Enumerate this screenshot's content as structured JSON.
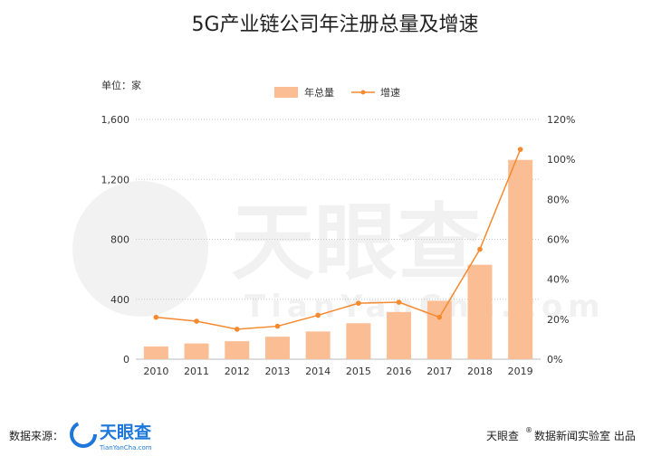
{
  "chart_data": {
    "type": "bar",
    "title": "5G产业链公司年注册总量及增速",
    "unit_label": "单位：家",
    "categories": [
      "2010",
      "2011",
      "2012",
      "2013",
      "2014",
      "2015",
      "2016",
      "2017",
      "2018",
      "2019"
    ],
    "series": [
      {
        "name": "年总量",
        "type": "bar",
        "axis": "left",
        "color": "#FBBE94",
        "values": [
          85,
          105,
          120,
          150,
          185,
          240,
          315,
          390,
          630,
          1330
        ]
      },
      {
        "name": "增速",
        "type": "line",
        "axis": "right",
        "color": "#F5892E",
        "values": [
          21,
          19,
          15,
          16.5,
          22,
          28,
          28.5,
          21,
          55,
          105
        ]
      }
    ],
    "y_left": {
      "min": 0,
      "max": 1600,
      "ticks": [
        0,
        400,
        800,
        1200,
        1600
      ],
      "tick_labels": [
        "0",
        "400",
        "800",
        "1,200",
        "1,600"
      ]
    },
    "y_right": {
      "min": 0,
      "max": 120,
      "ticks": [
        0,
        20,
        40,
        60,
        80,
        100,
        120
      ],
      "tick_labels": [
        "0%",
        "20%",
        "40%",
        "60%",
        "80%",
        "100%",
        "120%"
      ]
    },
    "grid": "horizontal-dotted",
    "legend_position": "top-center"
  },
  "watermark": {
    "brand": "天眼查",
    "url": "TianYanCha.com"
  },
  "footer": {
    "source_label": "数据来源：",
    "source_brand": "天眼查",
    "source_url": "TianYanCha.com",
    "credit_brand": "天眼查",
    "credit_sup": "®",
    "credit_text": "数据新闻实验室  出品"
  },
  "colors": {
    "bar": "#FBBE94",
    "line": "#F5892E",
    "brand_blue": "#1E78DC"
  }
}
